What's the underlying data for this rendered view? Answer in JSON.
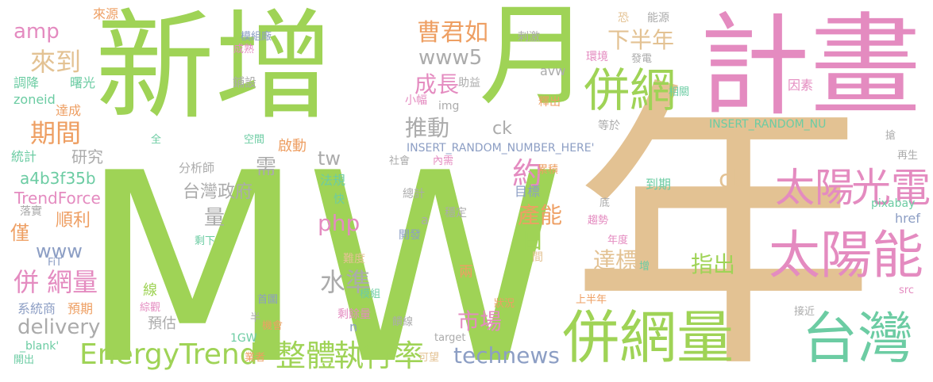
{
  "palette": {
    "green": "#9fd356",
    "tan": "#e3c293",
    "pink": "#e48bc0",
    "teal": "#6ccca3",
    "slate": "#8c9ec4",
    "gray": "#ababab",
    "orange": "#ee9f63"
  },
  "words": [
    {
      "text": "MW",
      "color": "#9fd356"
    },
    {
      "text": "年",
      "color": "#e3c293"
    },
    {
      "text": "新增",
      "color": "#9fd356"
    },
    {
      "text": "月",
      "color": "#9fd356"
    },
    {
      "text": "計畫",
      "color": "#e48bc0"
    },
    {
      "text": "併網量",
      "color": "#9fd356"
    },
    {
      "text": "台灣",
      "color": "#6ccca3"
    },
    {
      "text": "太陽能",
      "color": "#e48bc0"
    },
    {
      "text": "併網",
      "color": "#9fd356"
    },
    {
      "text": "太陽",
      "color": "#e48bc0"
    },
    {
      "text": "光電",
      "color": "#e48bc0"
    },
    {
      "text": "EnergyTrend",
      "color": "#9fd356"
    },
    {
      "text": "整體",
      "color": "#9fd356"
    },
    {
      "text": "執行率",
      "color": "#9fd356"
    },
    {
      "text": "technews",
      "color": "#8c9ec4"
    },
    {
      "text": "併 網量",
      "color": "#e48bc0"
    },
    {
      "text": "delivery",
      "color": "#ababab"
    },
    {
      "text": "期間",
      "color": "#ee9f63"
    },
    {
      "text": "來到",
      "color": "#e3c293"
    },
    {
      "text": "amp",
      "color": "#e48bc0"
    },
    {
      "text": "曹君如",
      "color": "#ee9f63"
    },
    {
      "text": "下半年",
      "color": "#e3c293"
    },
    {
      "text": "www5",
      "color": "#ababab"
    },
    {
      "text": "成長",
      "color": "#e48bc0"
    },
    {
      "text": "推動",
      "color": "#ababab"
    },
    {
      "text": "約",
      "color": "#e48bc0"
    },
    {
      "text": "產能",
      "color": "#ee9f63"
    },
    {
      "text": "日",
      "color": "#9fd356"
    },
    {
      "text": "市場",
      "color": "#e48bc0"
    },
    {
      "text": "水準",
      "color": "#ababab"
    },
    {
      "text": "達標",
      "color": "#e3c293"
    },
    {
      "text": "指出",
      "color": "#9fd356"
    },
    {
      "text": "cb",
      "color": "#e3c293"
    },
    {
      "text": "php",
      "color": "#e48bc0"
    },
    {
      "text": "www",
      "color": "#8c9ec4"
    },
    {
      "text": "需",
      "color": "#ababab"
    },
    {
      "text": "tw",
      "color": "#ababab"
    },
    {
      "text": "台灣政府",
      "color": "#ababab"
    },
    {
      "text": "量",
      "color": "#ababab"
    },
    {
      "text": "僅",
      "color": "#ee9f63"
    },
    {
      "text": "順利",
      "color": "#ee9f63"
    },
    {
      "text": "研究",
      "color": "#ababab"
    },
    {
      "text": "a4b3f35b",
      "color": "#6ccca3"
    },
    {
      "text": "TrendForce",
      "color": "#e48bc0"
    },
    {
      "text": "啟動",
      "color": "#ee9f63"
    },
    {
      "text": "ck",
      "color": "#ababab"
    },
    {
      "text": "兩",
      "color": "#ee9f63"
    },
    {
      "text": "預估",
      "color": "#ababab"
    },
    {
      "text": "來源",
      "color": "#ee9f63"
    },
    {
      "text": "模組廠",
      "color": "#8c9ec4"
    },
    {
      "text": "成熟",
      "color": "#e48bc0"
    },
    {
      "text": "鋪設",
      "color": "#ababab"
    },
    {
      "text": "調降",
      "color": "#6ccca3"
    },
    {
      "text": "曙光",
      "color": "#6ccca3"
    },
    {
      "text": "zoneid",
      "color": "#6ccca3"
    },
    {
      "text": "達成",
      "color": "#ee9f63"
    },
    {
      "text": "統計",
      "color": "#6ccca3"
    },
    {
      "text": "空間",
      "color": "#6ccca3"
    },
    {
      "text": "全",
      "color": "#6ccca3"
    },
    {
      "text": "分析師",
      "color": "#ababab"
    },
    {
      "text": "法規",
      "color": "#6ccca3"
    },
    {
      "text": "落實",
      "color": "#ababab"
    },
    {
      "text": "FiT",
      "color": "#8c9ec4"
    },
    {
      "text": "系統商",
      "color": "#8c9ec4"
    },
    {
      "text": "預期",
      "color": "#ee9f63"
    },
    {
      "text": "_blank'",
      "color": "#6ccca3"
    },
    {
      "text": "開出",
      "color": "#6ccca3"
    },
    {
      "text": "刺激",
      "color": "#ababab"
    },
    {
      "text": "avw",
      "color": "#ababab"
    },
    {
      "text": "助益",
      "color": "#ababab"
    },
    {
      "text": "小幅",
      "color": "#e48bc0"
    },
    {
      "text": "img",
      "color": "#ababab"
    },
    {
      "text": "釋出",
      "color": "#ee9f63"
    },
    {
      "text": "等於",
      "color": "#ababab"
    },
    {
      "text": "恐",
      "color": "#e3c293"
    },
    {
      "text": "能源",
      "color": "#ababab"
    },
    {
      "text": "環境",
      "color": "#e48bc0"
    },
    {
      "text": "發電",
      "color": "#ababab"
    },
    {
      "text": "相關",
      "color": "#6ccca3"
    },
    {
      "text": "因素",
      "color": "#e48bc0"
    },
    {
      "text": "INSERT_RANDOM_NU",
      "color": "#6ccca3"
    },
    {
      "text": "INSERT_RANDOM_NUMBER_HERE'",
      "color": "#8c9ec4"
    },
    {
      "text": "社會",
      "color": "#ababab"
    },
    {
      "text": "內需",
      "color": "#e48bc0"
    },
    {
      "text": "累積",
      "color": "#ee9f63"
    },
    {
      "text": "目標",
      "color": "#8c9ec4"
    },
    {
      "text": "總計",
      "color": "#ababab"
    },
    {
      "text": "快",
      "color": "#6ccca3"
    },
    {
      "text": "a",
      "color": "#ababab"
    },
    {
      "text": "穩定",
      "color": "#ababab"
    },
    {
      "text": "開發",
      "color": "#8c9ec4"
    },
    {
      "text": "剩下",
      "color": "#6ccca3"
    },
    {
      "text": "難度",
      "color": "#e3c293"
    },
    {
      "text": "間",
      "color": "#e3c293"
    },
    {
      "text": "線",
      "color": "#9fd356"
    },
    {
      "text": "綜觀",
      "color": "#e48bc0"
    },
    {
      "text": "首圖",
      "color": "#8c9ec4"
    },
    {
      "text": "模組",
      "color": "#6ccca3"
    },
    {
      "text": "狀況",
      "color": "#ee9f63"
    },
    {
      "text": "剩餘量",
      "color": "#e48bc0"
    },
    {
      "text": "半",
      "color": "#ababab"
    },
    {
      "text": "機會",
      "color": "#ee9f63"
    },
    {
      "text": "n",
      "color": "#8c9ec4"
    },
    {
      "text": "饋線",
      "color": "#ababab"
    },
    {
      "text": "1GW",
      "color": "#6ccca3"
    },
    {
      "text": "target",
      "color": "#ababab"
    },
    {
      "text": "業者",
      "color": "#ee9f63"
    },
    {
      "text": "可望",
      "color": "#e3c293"
    },
    {
      "text": "到期",
      "color": "#6ccca3"
    },
    {
      "text": "底",
      "color": "#ababab"
    },
    {
      "text": "趨勢",
      "color": "#e48bc0"
    },
    {
      "text": "年度",
      "color": "#e48bc0"
    },
    {
      "text": "增",
      "color": "#6ccca3"
    },
    {
      "text": "上半年",
      "color": "#ee9f63"
    },
    {
      "text": "接近",
      "color": "#ababab"
    },
    {
      "text": "搶",
      "color": "#ababab"
    },
    {
      "text": "再生",
      "color": "#ababab"
    },
    {
      "text": "pixabay",
      "color": "#6ccca3"
    },
    {
      "text": "href",
      "color": "#8c9ec4"
    },
    {
      "text": "src",
      "color": "#e48bc0"
    }
  ]
}
